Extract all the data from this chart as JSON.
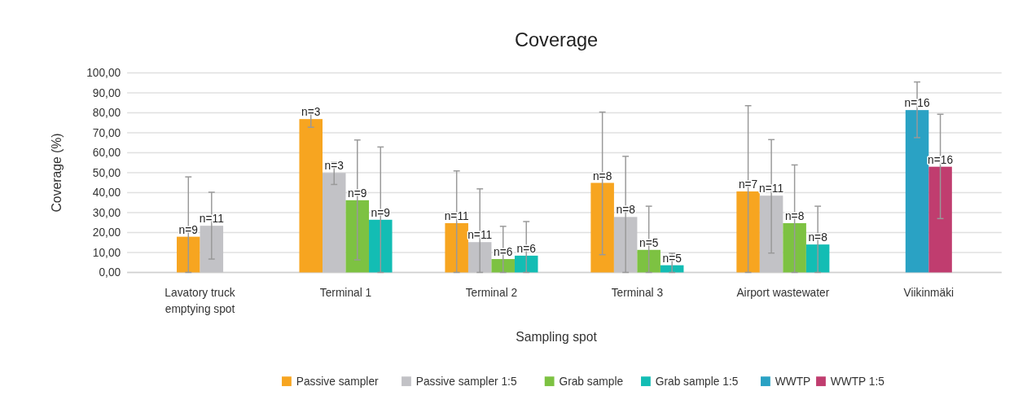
{
  "chart_data": {
    "type": "bar",
    "title": "Coverage",
    "xlabel": "Sampling spot",
    "ylabel": "Coverage (%)",
    "categories": [
      "Lavatory truck emptying spot",
      "Terminal 1",
      "Terminal 2",
      "Terminal 3",
      "Airport wastewater",
      "Viikinmäki"
    ],
    "series": [
      {
        "name": "Passive sampler",
        "color": "#f7a520",
        "values": [
          17.9,
          76.9,
          24.7,
          44.9,
          40.6,
          null
        ],
        "errors": [
          [
            0,
            47.9
          ],
          [
            72.8,
            81.6
          ],
          [
            0,
            50.9
          ],
          [
            8.9,
            80.4
          ],
          [
            0,
            83.6
          ],
          null
        ]
      },
      {
        "name": "Passive sampler 1:5",
        "color": "#c2c2c6",
        "values": [
          23.4,
          49.9,
          15.2,
          27.8,
          38.5,
          null
        ],
        "errors": [
          [
            6.7,
            40.2
          ],
          [
            44.1,
            55.4
          ],
          [
            0,
            41.9
          ],
          [
            0,
            58.2
          ],
          [
            9.7,
            66.6
          ],
          null
        ]
      },
      {
        "name": "Grab sample",
        "color": "#7dc242",
        "values": [
          null,
          36.2,
          6.7,
          11.3,
          24.7,
          null
        ],
        "errors": [
          null,
          [
            6.3,
            66.4
          ],
          [
            0,
            23.1
          ],
          [
            0,
            33.2
          ],
          [
            0,
            53.9
          ],
          null
        ]
      },
      {
        "name": "Grab sample 1:5",
        "color": "#13bdb4",
        "values": [
          null,
          26.4,
          8.4,
          3.6,
          14.0,
          null
        ],
        "errors": [
          null,
          [
            0,
            62.9
          ],
          [
            0,
            25.5
          ],
          [
            0,
            9.6
          ],
          [
            0,
            33.2
          ],
          null
        ]
      },
      {
        "name": "WWTP",
        "color": "#2aa2c4",
        "values": [
          null,
          null,
          null,
          null,
          null,
          81.4
        ],
        "errors": [
          null,
          null,
          null,
          null,
          null,
          [
            67.6,
            95.5
          ]
        ]
      },
      {
        "name": "WWTP 1:5",
        "color": "#c03d6f",
        "values": [
          null,
          null,
          null,
          null,
          null,
          53.0
        ],
        "errors": [
          null,
          null,
          null,
          null,
          null,
          [
            27.0,
            79.3
          ]
        ]
      }
    ],
    "annotations": [
      "n=9",
      "n=11",
      "n=3",
      "n=3",
      "n=9",
      "n=9",
      "n=11",
      "n=11",
      "n=6",
      "n=6",
      "n=8",
      "n=8",
      "n=5",
      "n=5",
      "n=7",
      "n=11",
      "n=8",
      "n=8",
      "n=16",
      "n=16"
    ],
    "ylim": [
      0,
      100
    ],
    "yticks": [
      {
        "value": 0,
        "label": "0,00"
      },
      {
        "value": 10,
        "label": "10,00"
      },
      {
        "value": 20,
        "label": "20,00"
      },
      {
        "value": 30,
        "label": "30,00"
      },
      {
        "value": 40,
        "label": "40,00"
      },
      {
        "value": 50,
        "label": "50,00"
      },
      {
        "value": 60,
        "label": "60,00"
      },
      {
        "value": 70,
        "label": "70,00"
      },
      {
        "value": 80,
        "label": "80,00"
      },
      {
        "value": 90,
        "label": "90,00"
      },
      {
        "value": 100,
        "label": "100,00"
      }
    ],
    "grid": "y",
    "legend": "bottom"
  }
}
